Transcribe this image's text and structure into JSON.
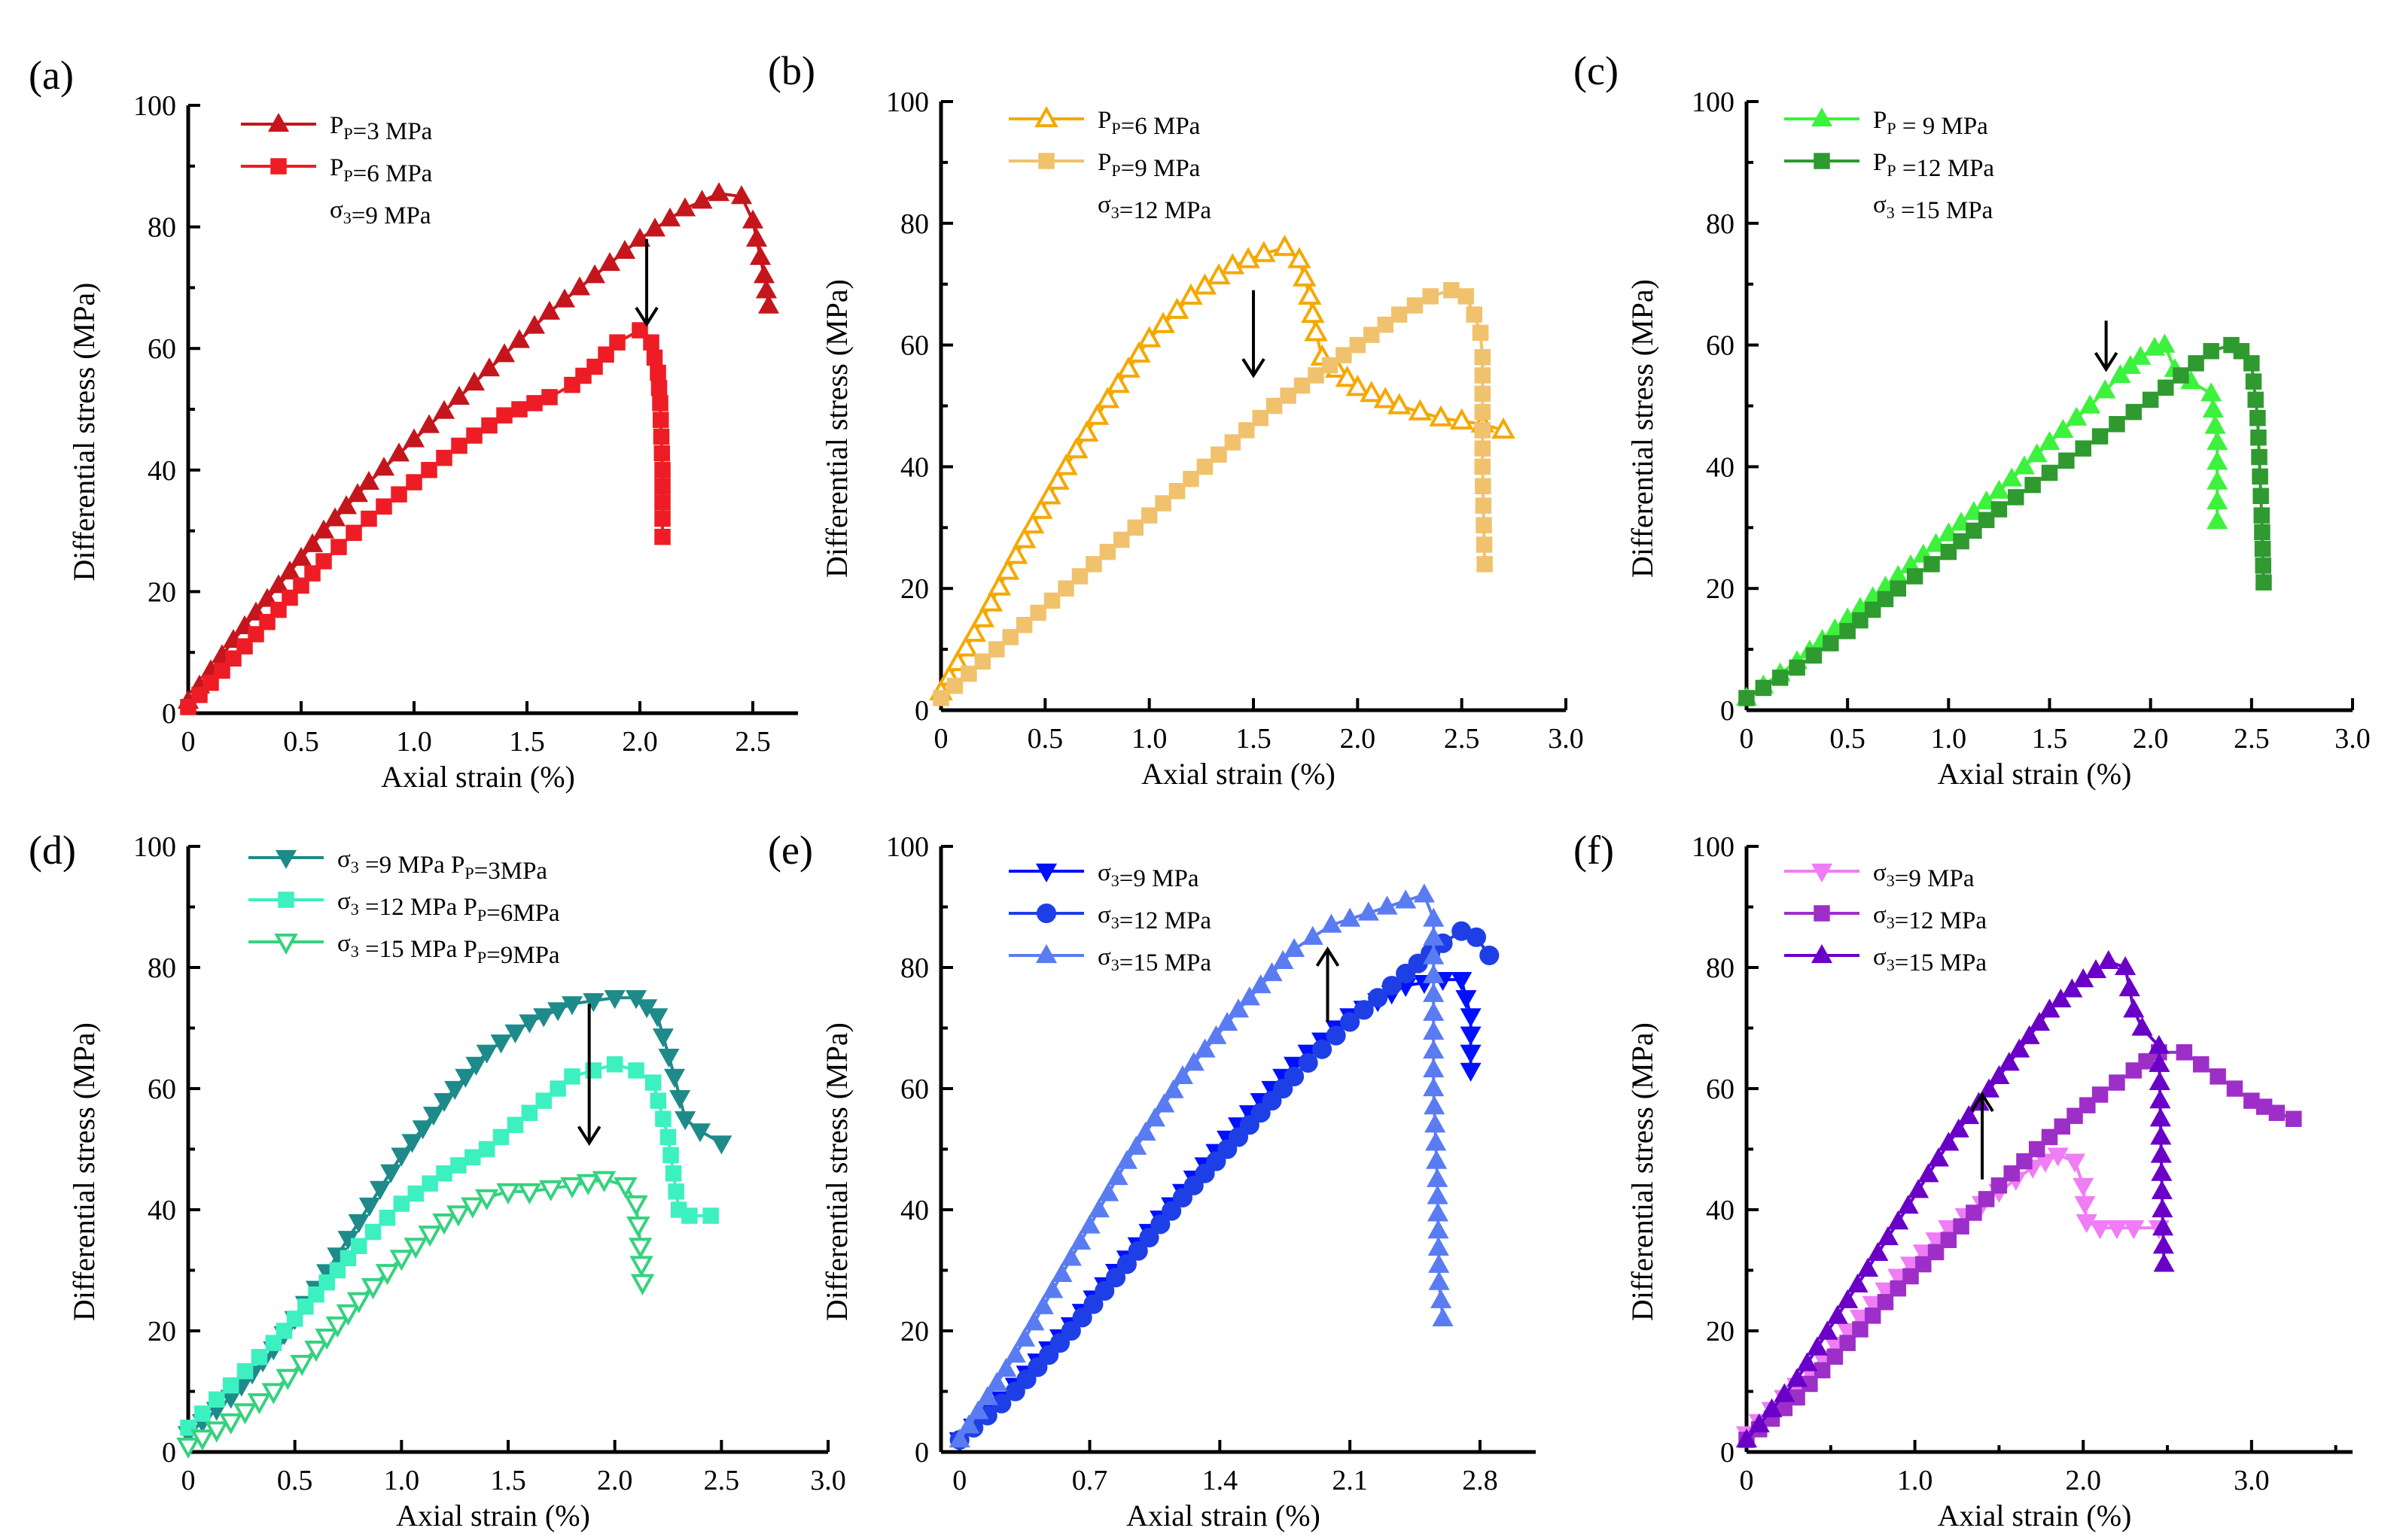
{
  "figure": {
    "xlabel": "Axial strain (%)",
    "ylabel": "Differential stress (MPa)"
  },
  "colors": {
    "dark_red": "#c4161c",
    "red": "#ee1c25",
    "yellow": "#ffd200",
    "tan": "#f0c26e",
    "orange": "#f5a800",
    "light_green": "#3cf23c",
    "dark_green": "#2f9a2f",
    "teal_dark": "#1e8a8a",
    "teal_mid": "#3df0c0",
    "teal_light": "#35d27f",
    "blue_dark": "#0010ff",
    "blue_mid": "#1f3fe6",
    "blue_light": "#5a7cf2",
    "pink": "#ef7df5",
    "purple_mid": "#9d2fc8",
    "purple_dark": "#6a00c8"
  },
  "chart_data": [
    {
      "id": "a",
      "panel_label": "(a)",
      "type": "line",
      "xlim": [
        0,
        2.7
      ],
      "ylim": [
        0,
        100
      ],
      "xticks": [
        0,
        0.5,
        1.0,
        1.5,
        2.0,
        2.5
      ],
      "xtick_labels": [
        "0",
        "0.5",
        "1.0",
        "1.5",
        "2.0",
        "2.5"
      ],
      "yticks": [
        0,
        20,
        40,
        60,
        80,
        100
      ],
      "ytick_labels": [
        "0",
        "20",
        "40",
        "60",
        "80",
        "100"
      ],
      "note": {
        "sym": "σ",
        "sub": "3",
        "rest": "=9 MPa"
      },
      "arrow": {
        "x": 2.03,
        "y_from": 78,
        "y_to": 64
      },
      "series": [
        {
          "legend": {
            "sym": "P",
            "sub": "P",
            "rest": "=3 MPa"
          },
          "color": "#c4161c",
          "marker": "tri-up",
          "filled": true,
          "x": [
            0,
            0.2,
            0.4,
            0.6,
            0.8,
            1.0,
            1.2,
            1.4,
            1.6,
            1.8,
            2.0,
            2.2,
            2.35,
            2.45,
            2.5,
            2.55,
            2.57
          ],
          "y": [
            2,
            12,
            21,
            30,
            38,
            45,
            52,
            59,
            66,
            72,
            78,
            83,
            85.5,
            85,
            81,
            72,
            67
          ]
        },
        {
          "legend": {
            "sym": "P",
            "sub": "P",
            "rest": "=6 MPa"
          },
          "color": "#ee1c25",
          "marker": "square",
          "filled": true,
          "x": [
            0,
            0.2,
            0.4,
            0.6,
            0.8,
            1.0,
            1.2,
            1.4,
            1.6,
            1.7,
            1.8,
            1.9,
            2.0,
            2.05,
            2.08,
            2.09,
            2.1,
            2.1,
            2.1
          ],
          "y": [
            1,
            9,
            17,
            25,
            32,
            38,
            44,
            49,
            52,
            54,
            57,
            61,
            63,
            61,
            56,
            51,
            40,
            32,
            29
          ]
        }
      ]
    },
    {
      "id": "b",
      "panel_label": "(b)",
      "type": "line",
      "xlim": [
        0,
        3.0
      ],
      "ylim": [
        0,
        100
      ],
      "xticks": [
        0,
        0.5,
        1.0,
        1.5,
        2.0,
        2.5,
        3.0
      ],
      "xtick_labels": [
        "0",
        "0.5",
        "1.0",
        "1.5",
        "2.0",
        "2.5",
        "3.0"
      ],
      "yticks": [
        0,
        20,
        40,
        60,
        80,
        100
      ],
      "ytick_labels": [
        "0",
        "20",
        "40",
        "60",
        "80",
        "100"
      ],
      "note": {
        "sym": "σ",
        "sub": "3",
        "rest": "=12 MPa"
      },
      "arrow": {
        "x": 1.5,
        "y_from": 69,
        "y_to": 55
      },
      "series": [
        {
          "legend": {
            "sym": "P",
            "sub": "P",
            "rest": "=6 MPa"
          },
          "color": "#f5a800",
          "marker": "tri-up",
          "filled": false,
          "x": [
            0,
            0.2,
            0.4,
            0.6,
            0.8,
            1.0,
            1.2,
            1.4,
            1.55,
            1.65,
            1.72,
            1.77,
            1.8,
            1.83,
            1.9,
            2.0,
            2.2,
            2.4,
            2.6,
            2.7
          ],
          "y": [
            3,
            15,
            28,
            40,
            51,
            61,
            68,
            73,
            75,
            76,
            74,
            68,
            62,
            58,
            56,
            53,
            50,
            48,
            47,
            46
          ]
        },
        {
          "legend": {
            "sym": "P",
            "sub": "P",
            "rest": "=9 MPa"
          },
          "color": "#f0c26e",
          "marker": "square",
          "filled": true,
          "x": [
            0,
            0.2,
            0.4,
            0.6,
            0.8,
            1.0,
            1.2,
            1.4,
            1.6,
            1.8,
            2.0,
            2.2,
            2.35,
            2.45,
            2.52,
            2.56,
            2.59,
            2.6,
            2.6,
            2.61
          ],
          "y": [
            2,
            8,
            14,
            20,
            26,
            32,
            38,
            44,
            50,
            55,
            60,
            65,
            68,
            69,
            68,
            65,
            62,
            58,
            40,
            24
          ]
        }
      ]
    },
    {
      "id": "c",
      "panel_label": "(c)",
      "type": "line",
      "xlim": [
        0,
        3.0
      ],
      "ylim": [
        0,
        100
      ],
      "xticks": [
        0,
        0.5,
        1.0,
        1.5,
        2.0,
        2.5,
        3.0
      ],
      "xtick_labels": [
        "0",
        "0.5",
        "1.0",
        "1.5",
        "2.0",
        "2.5",
        "3.0"
      ],
      "yticks": [
        0,
        20,
        40,
        60,
        80,
        100
      ],
      "ytick_labels": [
        "0",
        "20",
        "40",
        "60",
        "80",
        "100"
      ],
      "note": {
        "sym": "σ",
        "sub": "3",
        "rest": " =15 MPa"
      },
      "arrow": {
        "x": 1.78,
        "y_from": 64,
        "y_to": 56
      },
      "series": [
        {
          "legend": {
            "sym": "P",
            "sub": "P",
            "rest": " = 9  MPa"
          },
          "color": "#3cf23c",
          "marker": "tri-up",
          "filled": true,
          "x": [
            0,
            0.25,
            0.5,
            0.75,
            1.0,
            1.25,
            1.5,
            1.7,
            1.85,
            1.95,
            2.02,
            2.07,
            2.12,
            2.2,
            2.3,
            2.33,
            2.33
          ],
          "y": [
            2,
            8,
            15,
            22,
            29,
            36,
            44,
            50,
            55,
            58,
            59.5,
            60,
            56,
            54,
            52,
            44,
            31
          ]
        },
        {
          "legend": {
            "sym": "P",
            "sub": "P",
            "rest": " =12 MPa"
          },
          "color": "#2f9a2f",
          "marker": "square",
          "filled": true,
          "x": [
            0,
            0.25,
            0.5,
            0.75,
            1.0,
            1.25,
            1.5,
            1.75,
            2.0,
            2.15,
            2.3,
            2.4,
            2.45,
            2.5,
            2.53,
            2.55,
            2.56
          ],
          "y": [
            2,
            7,
            13,
            20,
            26,
            33,
            39,
            45,
            51,
            55,
            59,
            60,
            59,
            57,
            48,
            32,
            21
          ]
        }
      ]
    },
    {
      "id": "d",
      "panel_label": "(d)",
      "type": "line",
      "xlim": [
        0,
        3.0
      ],
      "ylim": [
        0,
        100
      ],
      "xticks": [
        0,
        0.5,
        1.0,
        1.5,
        2.0,
        2.5,
        3.0
      ],
      "xtick_labels": [
        "0",
        "0.5",
        "1.0",
        "1.5",
        "2.0",
        "2.5",
        "3.0"
      ],
      "yticks": [
        0,
        20,
        40,
        60,
        80,
        100
      ],
      "ytick_labels": [
        "0",
        "20",
        "40",
        "60",
        "80",
        "100"
      ],
      "arrow": {
        "x": 1.88,
        "y_from": 74,
        "y_to": 51
      },
      "series": [
        {
          "legend": {
            "sym": "σ",
            "sub": "3",
            "rest": " =9 MPa P",
            "sub2": "P",
            "rest2": "=3MPa"
          },
          "color": "#1e8a8a",
          "marker": "tri-down",
          "filled": true,
          "x": [
            0,
            0.2,
            0.4,
            0.6,
            0.8,
            1.0,
            1.2,
            1.4,
            1.6,
            1.8,
            2.0,
            2.1,
            2.2,
            2.28,
            2.33,
            2.4,
            2.5
          ],
          "y": [
            3,
            9,
            17,
            27,
            38,
            49,
            58,
            66,
            71,
            74,
            75,
            75,
            72,
            62,
            55,
            53,
            51
          ]
        },
        {
          "legend": {
            "sym": "σ",
            "sub": "3",
            "rest": " =12 MPa P",
            "sub2": "P",
            "rest2": "=6MPa"
          },
          "color": "#3df0c0",
          "marker": "square",
          "filled": true,
          "x": [
            0,
            0.2,
            0.4,
            0.6,
            0.8,
            1.0,
            1.2,
            1.4,
            1.6,
            1.8,
            2.0,
            2.1,
            2.18,
            2.25,
            2.3,
            2.35,
            2.45
          ],
          "y": [
            4,
            11,
            18,
            26,
            34,
            41,
            46,
            50,
            56,
            62,
            64,
            63,
            61,
            52,
            40,
            39,
            39
          ]
        },
        {
          "legend": {
            "sym": "σ",
            "sub": "3",
            "rest": " =15 MPa P",
            "sub2": "P",
            "rest2": "=9MPa"
          },
          "color": "#35d27f",
          "marker": "tri-down",
          "filled": false,
          "x": [
            0,
            0.2,
            0.4,
            0.6,
            0.8,
            1.0,
            1.2,
            1.4,
            1.5,
            1.6,
            1.8,
            1.95,
            2.05,
            2.1,
            2.12,
            2.13
          ],
          "y": [
            1,
            5,
            10,
            17,
            25,
            32,
            38,
            42,
            43,
            43,
            44,
            45,
            44,
            41,
            34,
            28
          ]
        }
      ]
    },
    {
      "id": "e",
      "panel_label": "(e)",
      "type": "line",
      "xlim": [
        -0.1,
        3.1
      ],
      "ylim": [
        0,
        100
      ],
      "xticks": [
        0,
        0.7,
        1.4,
        2.1,
        2.8
      ],
      "xtick_labels": [
        "0",
        "0.7",
        "1.4",
        "2.1",
        "2.8"
      ],
      "yticks": [
        0,
        20,
        40,
        60,
        80,
        100
      ],
      "ytick_labels": [
        "0",
        "20",
        "40",
        "60",
        "80",
        "100"
      ],
      "arrow": {
        "x": 1.98,
        "y_from": 71,
        "y_to": 83
      },
      "series": [
        {
          "legend": {
            "sym": "σ",
            "sub": "3",
            "rest": "=9 MPa"
          },
          "color": "#0010ff",
          "marker": "tri-down",
          "filled": true,
          "x": [
            0,
            0.3,
            0.6,
            0.9,
            1.2,
            1.5,
            1.8,
            2.1,
            2.4,
            2.6,
            2.7,
            2.75,
            2.75
          ],
          "y": [
            2,
            11,
            21,
            32,
            43,
            54,
            64,
            72,
            77,
            78,
            78,
            72,
            63
          ]
        },
        {
          "legend": {
            "sym": "σ",
            "sub": "3",
            "rest": "=12 MPa"
          },
          "color": "#1f3fe6",
          "marker": "circle",
          "filled": true,
          "x": [
            0,
            0.3,
            0.6,
            0.9,
            1.2,
            1.5,
            1.8,
            2.1,
            2.4,
            2.6,
            2.7,
            2.78,
            2.85
          ],
          "y": [
            2,
            10,
            20,
            31,
            42,
            52,
            62,
            71,
            79,
            84,
            86,
            85,
            82
          ]
        },
        {
          "legend": {
            "sym": "σ",
            "sub": "3",
            "rest": "=15 MPa"
          },
          "color": "#5a7cf2",
          "marker": "tri-up",
          "filled": true,
          "x": [
            0,
            0.3,
            0.6,
            0.9,
            1.2,
            1.5,
            1.8,
            2.0,
            2.2,
            2.4,
            2.5,
            2.55,
            2.55,
            2.57,
            2.58,
            2.6
          ],
          "y": [
            2,
            16,
            32,
            48,
            62,
            73,
            83,
            87,
            89,
            91,
            92,
            88,
            60,
            45,
            28,
            22
          ]
        }
      ]
    },
    {
      "id": "f",
      "panel_label": "(f)",
      "type": "line",
      "xlim": [
        0,
        3.6
      ],
      "ylim": [
        0,
        100
      ],
      "xticks": [
        0,
        1.0,
        2.0,
        3.0
      ],
      "xtick_labels": [
        "0",
        "1.0",
        "2.0",
        "3.0"
      ],
      "minor_xticks": [
        0.5,
        1.5,
        2.5,
        3.5
      ],
      "yticks": [
        0,
        20,
        40,
        60,
        80,
        100
      ],
      "ytick_labels": [
        "0",
        "20",
        "40",
        "60",
        "80",
        "100"
      ],
      "arrow": {
        "x": 1.4,
        "y_from": 45,
        "y_to": 59
      },
      "series": [
        {
          "legend": {
            "sym": "σ",
            "sub": "3",
            "rest": "=9 MPa"
          },
          "color": "#ef7df5",
          "marker": "tri-down",
          "filled": true,
          "x": [
            0,
            0.3,
            0.6,
            0.9,
            1.2,
            1.5,
            1.7,
            1.85,
            1.95,
            2.0,
            2.02,
            2.1,
            2.3,
            2.45
          ],
          "y": [
            3,
            11,
            20,
            29,
            37,
            43,
            47,
            49,
            48,
            44,
            38,
            37,
            37,
            37
          ]
        },
        {
          "legend": {
            "sym": "σ",
            "sub": "3",
            "rest": "=12 MPa"
          },
          "color": "#9d2fc8",
          "marker": "square",
          "filled": true,
          "x": [
            0,
            0.3,
            0.6,
            0.9,
            1.2,
            1.5,
            1.8,
            2.1,
            2.3,
            2.45,
            2.6,
            2.8,
            3.0,
            3.15,
            3.25
          ],
          "y": [
            2,
            9,
            18,
            27,
            35,
            44,
            52,
            59,
            63,
            66,
            66,
            62,
            58,
            56,
            55
          ]
        },
        {
          "legend": {
            "sym": "σ",
            "sub": "3",
            "rest": "=15 MPa"
          },
          "color": "#6a00c8",
          "marker": "tri-up",
          "filled": true,
          "x": [
            0,
            0.3,
            0.6,
            0.9,
            1.2,
            1.5,
            1.8,
            2.0,
            2.15,
            2.25,
            2.3,
            2.35,
            2.45,
            2.47,
            2.48
          ],
          "y": [
            2,
            12,
            25,
            38,
            51,
            62,
            73,
            78,
            81,
            80,
            73,
            70,
            67,
            40,
            31
          ]
        }
      ]
    }
  ]
}
